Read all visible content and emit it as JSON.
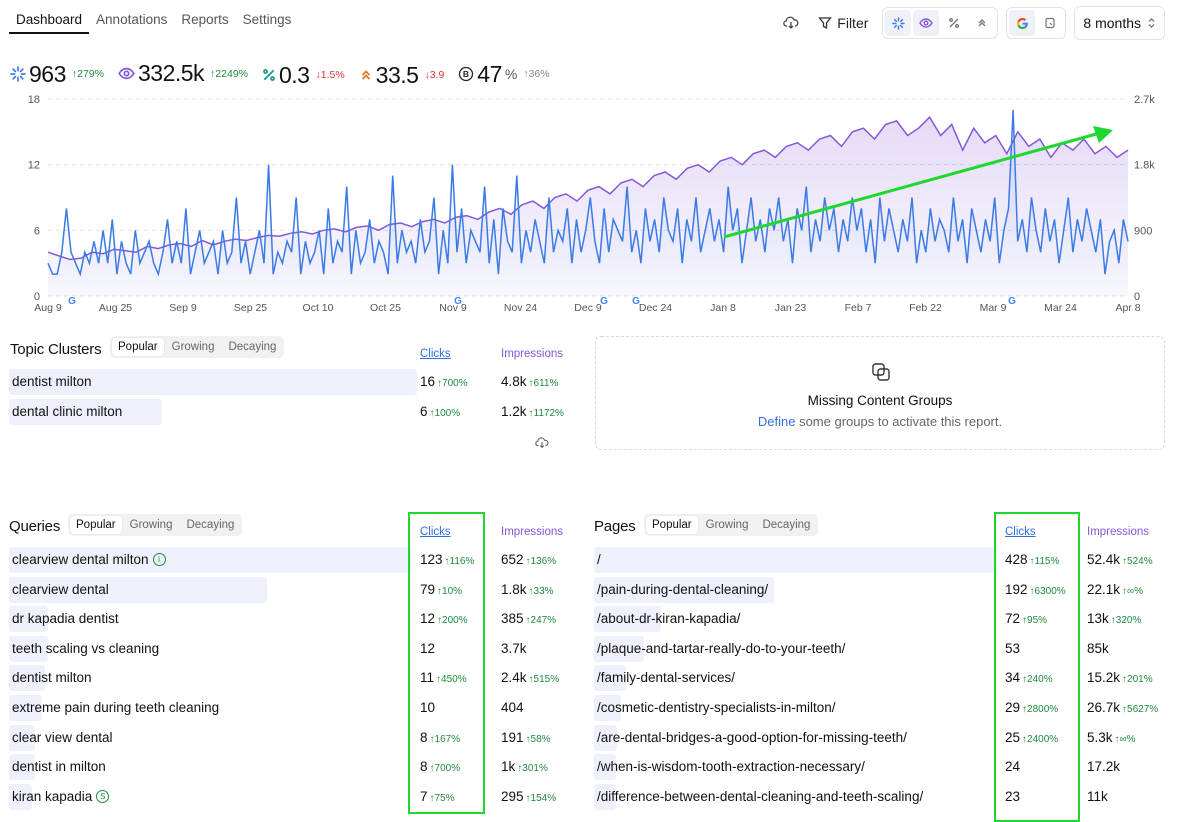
{
  "nav": {
    "tabs": [
      "Dashboard",
      "Annotations",
      "Reports",
      "Settings"
    ],
    "active": 0
  },
  "toolbar": {
    "filter_label": "Filter",
    "range_label": "8 months"
  },
  "metrics": [
    {
      "icon": "clicks-icon",
      "value": "963",
      "unit": "",
      "change": "279%",
      "dir": "up"
    },
    {
      "icon": "eye-icon",
      "value": "332.5k",
      "unit": "",
      "change": "2249%",
      "dir": "up"
    },
    {
      "icon": "ctr-icon",
      "value": "0.3",
      "unit": "",
      "change": "1.5%",
      "dir": "down"
    },
    {
      "icon": "position-icon",
      "value": "33.5",
      "unit": "",
      "change": "3.9",
      "dir": "down"
    },
    {
      "icon": "brand-icon",
      "value": "47",
      "unit": "%",
      "change": "36%",
      "dir": "grey"
    }
  ],
  "chart_data": {
    "type": "line",
    "x_ticks": [
      "Aug 9",
      "Aug 25",
      "Sep 9",
      "Sep 25",
      "Oct 10",
      "Oct 25",
      "Nov 9",
      "Nov 24",
      "Dec 9",
      "Dec 24",
      "Jan 8",
      "Jan 23",
      "Feb 7",
      "Feb 22",
      "Mar 9",
      "Mar 24",
      "Apr 8"
    ],
    "y_left_ticks": [
      "0",
      "6",
      "12",
      "18"
    ],
    "y_right_ticks": [
      "0",
      "900",
      "1.8k",
      "2.7k"
    ],
    "ylim_left": [
      0,
      18
    ],
    "ylim_right": [
      0,
      2700
    ],
    "series": [
      {
        "name": "",
        "axis": "left",
        "color": "#3b7be6",
        "values": [
          3,
          2,
          2,
          4,
          8,
          4,
          3,
          2,
          4,
          3,
          5,
          3,
          6,
          3,
          7,
          2,
          5,
          3,
          2,
          6,
          3,
          4,
          5,
          3,
          2,
          4,
          7,
          3,
          5,
          3,
          8,
          2,
          4,
          6,
          3,
          4,
          5,
          2,
          6,
          3,
          4,
          9,
          3,
          5,
          2,
          4,
          6,
          3,
          12,
          2,
          4,
          3,
          5,
          4,
          9,
          2,
          5,
          3,
          4,
          6,
          2,
          8,
          3,
          5,
          4,
          10,
          2,
          6,
          3,
          4,
          7,
          3,
          5,
          4,
          2,
          11,
          3,
          6,
          4,
          5,
          3,
          7,
          4,
          5,
          9,
          2,
          6,
          3,
          12,
          4,
          8,
          3,
          6,
          5,
          4,
          10,
          3,
          7,
          2,
          8,
          5,
          4,
          11,
          3,
          6,
          4,
          7,
          5,
          3,
          9,
          4,
          6,
          5,
          8,
          3,
          7,
          4,
          6,
          9,
          5,
          3,
          8,
          4,
          7,
          6,
          5,
          10,
          4,
          6,
          3,
          8,
          5,
          7,
          4,
          9,
          6,
          5,
          8,
          3,
          7,
          5,
          9,
          4,
          6,
          8,
          5,
          7,
          4,
          10,
          6,
          8,
          3,
          6,
          9,
          5,
          7,
          4,
          8,
          6,
          9,
          5,
          7,
          3,
          8,
          6,
          10,
          4,
          7,
          5,
          9,
          6,
          8,
          4,
          7,
          5,
          9,
          6,
          8,
          4,
          7,
          3,
          9,
          5,
          8,
          6,
          4,
          7,
          5,
          9,
          3,
          6,
          4,
          8,
          5,
          7,
          6,
          4,
          9,
          5,
          7,
          3,
          8,
          6,
          4,
          7,
          5,
          9,
          3,
          6,
          8,
          17,
          5,
          7,
          4,
          9,
          6,
          4,
          8,
          5,
          7,
          3,
          6,
          9,
          4,
          7,
          5,
          8,
          6,
          4,
          7,
          2,
          5,
          6,
          3,
          7,
          5
        ]
      },
      {
        "name": "",
        "axis": "right",
        "color": "#8557d8",
        "values": [
          600,
          550,
          500,
          520,
          600,
          580,
          640,
          620,
          600,
          680,
          650,
          700,
          720,
          680,
          760,
          700,
          750,
          780,
          760,
          800,
          830,
          820,
          860,
          880,
          850,
          900,
          920,
          880,
          940,
          960,
          900,
          980,
          1000,
          950,
          1020,
          1050,
          1000,
          1080,
          1100,
          1050,
          1150,
          1200,
          1120,
          1250,
          1300,
          1200,
          1350,
          1400,
          1300,
          1450,
          1500,
          1400,
          1550,
          1600,
          1500,
          1650,
          1700,
          1600,
          1750,
          1800,
          1700,
          1850,
          1900,
          1800,
          1950,
          2000,
          1900,
          2050,
          2100,
          2000,
          2150,
          2200,
          2050,
          2250,
          2300,
          2150,
          2350,
          2400,
          2200,
          2300,
          2450,
          2200,
          2350,
          2000,
          2300,
          2100,
          2200,
          1950,
          2250,
          2050,
          2150,
          1900,
          2100,
          2000,
          2150,
          1950,
          2050,
          1900,
          2000
        ]
      }
    ],
    "annotations": [
      "G",
      "G",
      "G",
      "G",
      "G"
    ]
  },
  "topics": {
    "title": "Topic Clusters",
    "tabs": [
      "Popular",
      "Growing",
      "Decaying"
    ],
    "clicks_label": "Clicks",
    "impr_label": "Impressions",
    "rows": [
      {
        "label": "dentist milton",
        "clicks": "16",
        "clicks_chg": "700%",
        "impr": "4.8k",
        "impr_chg": "611%",
        "bar": 1.0
      },
      {
        "label": "dental clinic milton",
        "clicks": "6",
        "clicks_chg": "100%",
        "impr": "1.2k",
        "impr_chg": "1172%",
        "bar": 0.375
      }
    ]
  },
  "missing": {
    "title": "Missing Content Groups",
    "link": "Define",
    "rest": " some groups to activate this report."
  },
  "queries": {
    "title": "Queries",
    "tabs": [
      "Popular",
      "Growing",
      "Decaying"
    ],
    "clicks_label": "Clicks",
    "impr_label": "Impressions",
    "rows": [
      {
        "label": "clearview dental milton",
        "badge": "i",
        "clicks": "123",
        "clicks_chg": "116%",
        "impr": "652",
        "impr_chg": "136%",
        "bar": 1.0
      },
      {
        "label": "clearview dental",
        "clicks": "79",
        "clicks_chg": "10%",
        "impr": "1.8k",
        "impr_chg": "33%",
        "bar": 0.642
      },
      {
        "label": "dr kapadia dentist",
        "clicks": "12",
        "clicks_chg": "200%",
        "impr": "385",
        "impr_chg": "247%",
        "bar": 0.0976
      },
      {
        "label": "teeth scaling vs cleaning",
        "clicks": "12",
        "clicks_chg": "",
        "impr": "3.7k",
        "impr_chg": "",
        "bar": 0.0976
      },
      {
        "label": "dentist milton",
        "clicks": "11",
        "clicks_chg": "450%",
        "impr": "2.4k",
        "impr_chg": "515%",
        "bar": 0.0894
      },
      {
        "label": "extreme pain during teeth cleaning",
        "clicks": "10",
        "clicks_chg": "",
        "impr": "404",
        "impr_chg": "",
        "bar": 0.0813
      },
      {
        "label": "clear view dental",
        "clicks": "8",
        "clicks_chg": "167%",
        "impr": "191",
        "impr_chg": "58%",
        "bar": 0.065
      },
      {
        "label": "dentist in milton",
        "clicks": "8",
        "clicks_chg": "700%",
        "impr": "1k",
        "impr_chg": "301%",
        "bar": 0.065
      },
      {
        "label": "kiran kapadia",
        "badge": "s",
        "clicks": "7",
        "clicks_chg": "75%",
        "impr": "295",
        "impr_chg": "154%",
        "bar": 0.057
      }
    ]
  },
  "pages": {
    "title": "Pages",
    "tabs": [
      "Popular",
      "Growing",
      "Decaying"
    ],
    "clicks_label": "Clicks",
    "impr_label": "Impressions",
    "rows": [
      {
        "label": "/",
        "clicks": "428",
        "clicks_chg": "115%",
        "impr": "52.4k",
        "impr_chg": "524%",
        "bar": 1.0
      },
      {
        "label": "/pain-during-dental-cleaning/",
        "clicks": "192",
        "clicks_chg": "6300%",
        "impr": "22.1k",
        "impr_chg": "∞%",
        "bar": 0.449
      },
      {
        "label": "/about-dr-kiran-kapadia/",
        "clicks": "72",
        "clicks_chg": "95%",
        "impr": "13k",
        "impr_chg": "320%",
        "bar": 0.168
      },
      {
        "label": "/plaque-and-tartar-really-do-to-your-teeth/",
        "clicks": "53",
        "clicks_chg": "",
        "impr": "85k",
        "impr_chg": "",
        "bar": 0.124
      },
      {
        "label": "/family-dental-services/",
        "clicks": "34",
        "clicks_chg": "240%",
        "impr": "15.2k",
        "impr_chg": "201%",
        "bar": 0.079
      },
      {
        "label": "/cosmetic-dentistry-specialists-in-milton/",
        "clicks": "29",
        "clicks_chg": "2800%",
        "impr": "26.7k",
        "impr_chg": "5627%",
        "bar": 0.068
      },
      {
        "label": "/are-dental-bridges-a-good-option-for-missing-teeth/",
        "clicks": "25",
        "clicks_chg": "2400%",
        "impr": "5.3k",
        "impr_chg": "∞%",
        "bar": 0.058
      },
      {
        "label": "/when-is-wisdom-tooth-extraction-necessary/",
        "clicks": "24",
        "clicks_chg": "",
        "impr": "17.2k",
        "impr_chg": "",
        "bar": 0.056
      },
      {
        "label": "/difference-between-dental-cleaning-and-teeth-scaling/",
        "clicks": "23",
        "clicks_chg": "",
        "impr": "11k",
        "impr_chg": "",
        "bar": 0.054
      }
    ]
  },
  "colors": {
    "clicks": "#3b7be6",
    "impressions": "#8557d8",
    "up": "#1f8a3c",
    "down": "#d9343a",
    "highlight": "#1ed72f"
  }
}
